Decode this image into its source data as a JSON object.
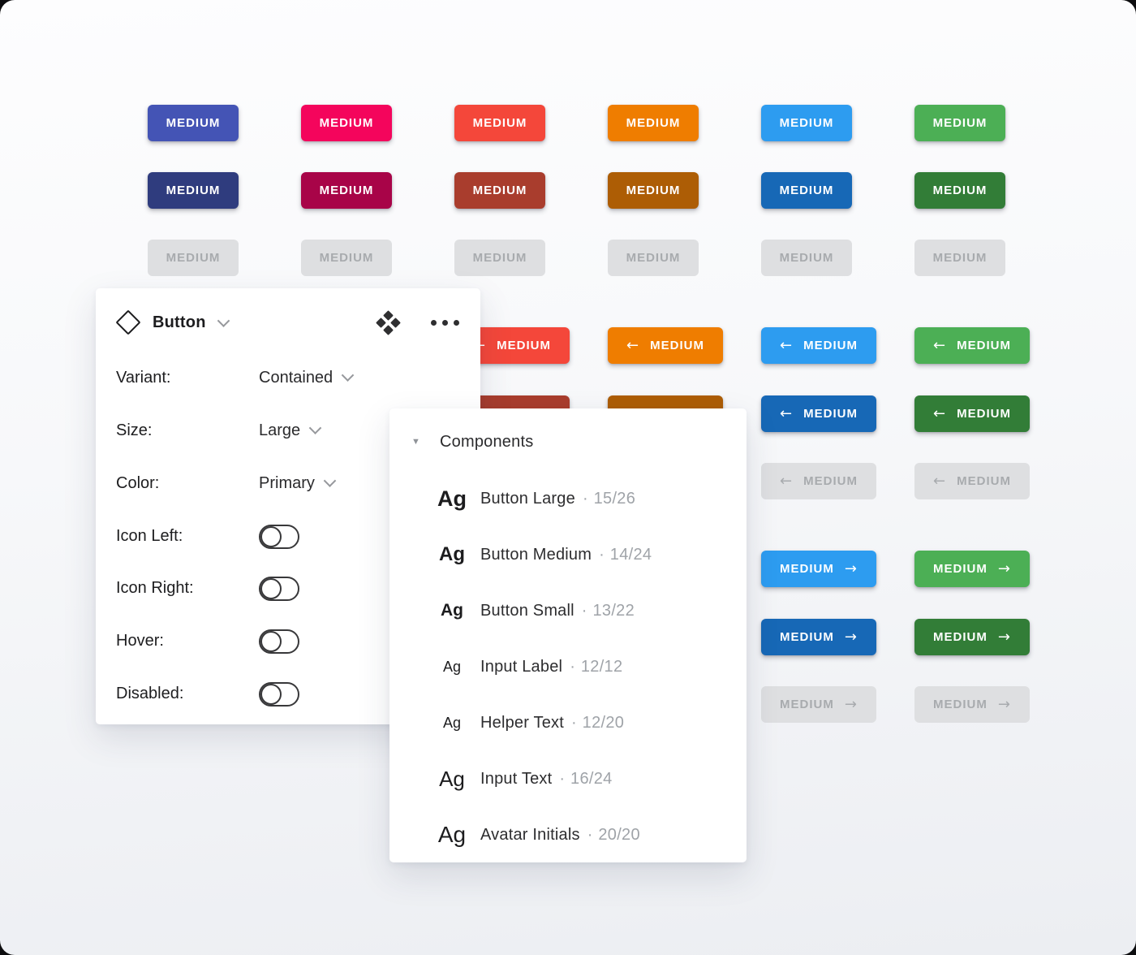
{
  "page": {
    "background_top": "#FDFDFE",
    "background_bottom": "#ECEEF2"
  },
  "buttons": {
    "label": "MEDIUM",
    "arrow_left": "←",
    "arrow_right": "→",
    "columns": [
      {
        "name": "indigo",
        "normal": "#4454B5",
        "dark": "#2F3C7E"
      },
      {
        "name": "pink",
        "normal": "#F4055C",
        "dark": "#A80448"
      },
      {
        "name": "red",
        "normal": "#F4473A",
        "dark": "#A93D2D"
      },
      {
        "name": "orange",
        "normal": "#EF7D00",
        "dark": "#AD5D05"
      },
      {
        "name": "blue",
        "normal": "#2D9CF0",
        "dark": "#1768B6"
      },
      {
        "name": "green",
        "normal": "#4CAF55",
        "dark": "#327D37"
      }
    ],
    "disabled": {
      "background": "#DEDFE1",
      "text": "#A8ABAE"
    }
  },
  "inspector": {
    "title": "Button",
    "properties": [
      {
        "label": "Variant:",
        "value": "Contained"
      },
      {
        "label": "Size:",
        "value": "Large"
      },
      {
        "label": "Color:",
        "value": "Primary"
      }
    ],
    "toggles": [
      {
        "label": "Icon Left:",
        "state": "off"
      },
      {
        "label": "Icon Right:",
        "state": "off"
      },
      {
        "label": "Hover:",
        "state": "off"
      },
      {
        "label": "Disabled:",
        "state": "off"
      }
    ]
  },
  "components_panel": {
    "collapse_icon": "▼",
    "title": "Components",
    "separator": "·",
    "items": [
      {
        "specimen": "Ag",
        "label": "Button Large",
        "value": "15/26"
      },
      {
        "specimen": "Ag",
        "label": "Button Medium",
        "value": "14/24"
      },
      {
        "specimen": "Ag",
        "label": "Button Small",
        "value": "13/22"
      },
      {
        "specimen": "Ag",
        "label": "Input Label",
        "value": "12/12"
      },
      {
        "specimen": "Ag",
        "label": "Helper Text",
        "value": "12/20"
      },
      {
        "specimen": "Ag",
        "label": "Input Text",
        "value": "16/24"
      },
      {
        "specimen": "Ag",
        "label": "Avatar Initials",
        "value": "20/20"
      }
    ]
  }
}
